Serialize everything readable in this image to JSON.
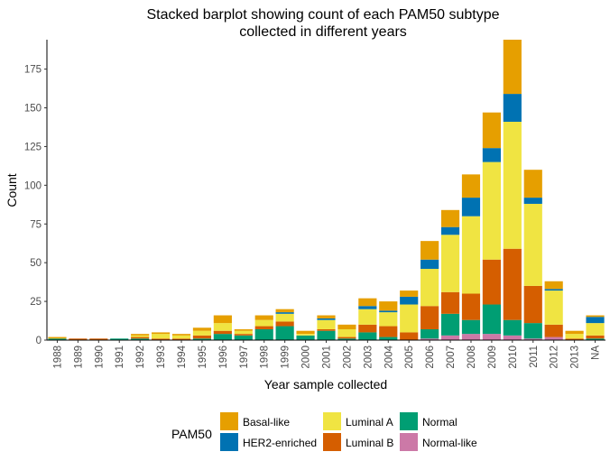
{
  "chart_data": {
    "type": "bar",
    "stacked": true,
    "title": [
      "Stacked barplot showing count of each PAM50 subtype",
      "collected in different years"
    ],
    "xlabel": "Year sample collected",
    "ylabel": "Count",
    "ylim": [
      0,
      194
    ],
    "yticks": [
      0,
      25,
      50,
      75,
      100,
      125,
      150,
      175
    ],
    "grid": false,
    "legend_title": "PAM50",
    "legend_position": "bottom",
    "categories": [
      "1988",
      "1989",
      "1990",
      "1991",
      "1992",
      "1993",
      "1994",
      "1995",
      "1996",
      "1997",
      "1998",
      "1999",
      "2000",
      "2001",
      "2002",
      "2003",
      "2004",
      "2005",
      "2006",
      "2007",
      "2008",
      "2009",
      "2010",
      "2011",
      "2012",
      "2013",
      "NA"
    ],
    "series": [
      {
        "name": "Normal-like",
        "color": "#CC79A7",
        "values": [
          0,
          0,
          0,
          0,
          0,
          0,
          0,
          0,
          0,
          0,
          0,
          0,
          0,
          0,
          0,
          0,
          0,
          0,
          1,
          3,
          4,
          4,
          3,
          1,
          2,
          0,
          0
        ]
      },
      {
        "name": "Normal",
        "color": "#009E73",
        "values": [
          1,
          0,
          0,
          1,
          1,
          0,
          0,
          1,
          4,
          3,
          7,
          9,
          3,
          6,
          1,
          5,
          2,
          0,
          6,
          14,
          9,
          19,
          10,
          10,
          0,
          0,
          1
        ]
      },
      {
        "name": "Luminal B",
        "color": "#D55E00",
        "values": [
          0,
          1,
          1,
          0,
          1,
          1,
          1,
          2,
          2,
          1,
          2,
          3,
          0,
          1,
          1,
          5,
          7,
          5,
          15,
          14,
          17,
          29,
          46,
          24,
          8,
          1,
          2
        ]
      },
      {
        "name": "Luminal A",
        "color": "#F0E442",
        "values": [
          0,
          0,
          0,
          0,
          1,
          3,
          2,
          3,
          5,
          2,
          4,
          5,
          1,
          6,
          5,
          10,
          9,
          18,
          24,
          37,
          50,
          63,
          82,
          53,
          22,
          3,
          8
        ]
      },
      {
        "name": "HER2-enriched",
        "color": "#0072B2",
        "values": [
          0,
          0,
          0,
          0,
          0,
          0,
          0,
          0,
          0,
          0,
          0,
          1,
          0,
          1,
          0,
          2,
          1,
          5,
          6,
          5,
          12,
          9,
          18,
          4,
          1,
          0,
          4
        ]
      },
      {
        "name": "Basal-like",
        "color": "#E69F00",
        "values": [
          1,
          0,
          0,
          0,
          1,
          1,
          1,
          2,
          5,
          1,
          3,
          2,
          2,
          2,
          3,
          5,
          6,
          4,
          12,
          11,
          15,
          23,
          35,
          18,
          5,
          2,
          1
        ]
      }
    ],
    "legend_order": [
      "Basal-like",
      "HER2-enriched",
      "Luminal A",
      "Luminal B",
      "Normal",
      "Normal-like"
    ]
  }
}
